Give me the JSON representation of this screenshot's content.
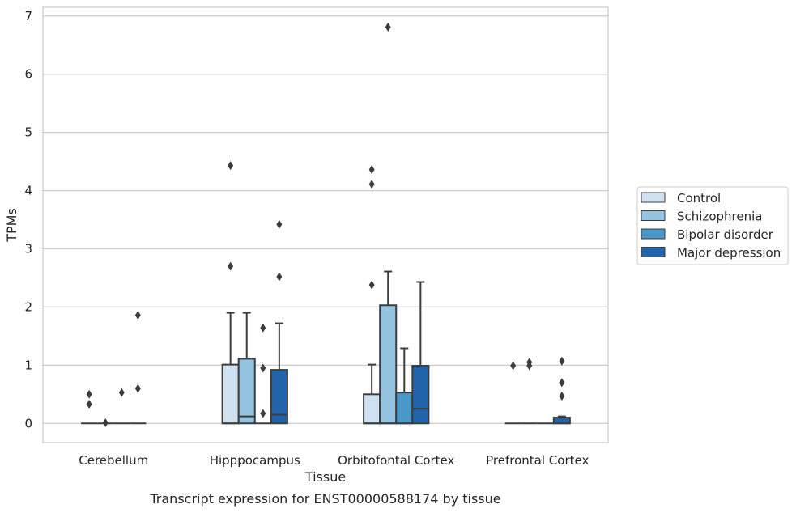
{
  "caption": "Transcript expression for ENST00000588174 by tissue",
  "chart_data": {
    "type": "box",
    "xlabel": "Tissue",
    "ylabel": "TPMs",
    "ylim": [
      -0.33,
      7.15
    ],
    "yticks": [
      0,
      1,
      2,
      3,
      4,
      5,
      6,
      7
    ],
    "grid": "horizontal",
    "legend_position": "right",
    "categories": [
      "Cerebellum",
      "Hipppocampus",
      "Orbitofontal Cortex",
      "Prefrontal Cortex"
    ],
    "series": [
      {
        "name": "Control",
        "color": "#d0e1f2",
        "boxes": [
          {
            "q1": 0,
            "median": 0,
            "q3": 0,
            "whisker_low": 0,
            "whisker_high": 0,
            "outliers": [
              0.33,
              0.5
            ]
          },
          {
            "q1": 0,
            "median": 0,
            "q3": 1.01,
            "whisker_low": 0,
            "whisker_high": 1.9,
            "outliers": [
              2.7,
              4.43
            ]
          },
          {
            "q1": 0,
            "median": 0,
            "q3": 0.5,
            "whisker_low": 0,
            "whisker_high": 1.01,
            "outliers": [
              2.38,
              4.11,
              4.36
            ]
          },
          {
            "q1": 0,
            "median": 0,
            "q3": 0,
            "whisker_low": 0,
            "whisker_high": 0,
            "outliers": [
              0.99
            ]
          }
        ]
      },
      {
        "name": "Schizophrenia",
        "color": "#94c4df",
        "boxes": [
          {
            "q1": 0,
            "median": 0,
            "q3": 0,
            "whisker_low": 0,
            "whisker_high": 0,
            "outliers": [
              0.01
            ]
          },
          {
            "q1": 0,
            "median": 0.12,
            "q3": 1.11,
            "whisker_low": 0,
            "whisker_high": 1.9,
            "outliers": []
          },
          {
            "q1": 0,
            "median": 0,
            "q3": 2.03,
            "whisker_low": 0,
            "whisker_high": 2.61,
            "outliers": [
              6.81
            ]
          },
          {
            "q1": 0,
            "median": 0,
            "q3": 0,
            "whisker_low": 0,
            "whisker_high": 0,
            "outliers": [
              0.99,
              1.05
            ]
          }
        ]
      },
      {
        "name": "Bipolar disorder",
        "color": "#4a98c9",
        "boxes": [
          {
            "q1": 0,
            "median": 0,
            "q3": 0,
            "whisker_low": 0,
            "whisker_high": 0,
            "outliers": [
              0.53
            ]
          },
          {
            "q1": 0,
            "median": 0,
            "q3": 0,
            "whisker_low": 0,
            "whisker_high": 0,
            "outliers": [
              0.17,
              0.95,
              1.64
            ]
          },
          {
            "q1": 0,
            "median": 0,
            "q3": 0.53,
            "whisker_low": 0,
            "whisker_high": 1.29,
            "outliers": []
          },
          {
            "q1": 0,
            "median": 0,
            "q3": 0,
            "whisker_low": 0,
            "whisker_high": 0,
            "outliers": []
          }
        ]
      },
      {
        "name": "Major depression",
        "color": "#2164ab",
        "boxes": [
          {
            "q1": 0,
            "median": 0,
            "q3": 0,
            "whisker_low": 0,
            "whisker_high": 0,
            "outliers": [
              0.6,
              1.86
            ]
          },
          {
            "q1": 0,
            "median": 0.15,
            "q3": 0.92,
            "whisker_low": 0,
            "whisker_high": 1.72,
            "outliers": [
              2.52,
              3.42
            ]
          },
          {
            "q1": 0,
            "median": 0.25,
            "q3": 0.99,
            "whisker_low": 0,
            "whisker_high": 2.43,
            "outliers": []
          },
          {
            "q1": 0,
            "median": 0,
            "q3": 0.1,
            "whisker_low": 0,
            "whisker_high": 0.12,
            "outliers": [
              0.47,
              0.7,
              1.07
            ]
          }
        ]
      }
    ]
  }
}
